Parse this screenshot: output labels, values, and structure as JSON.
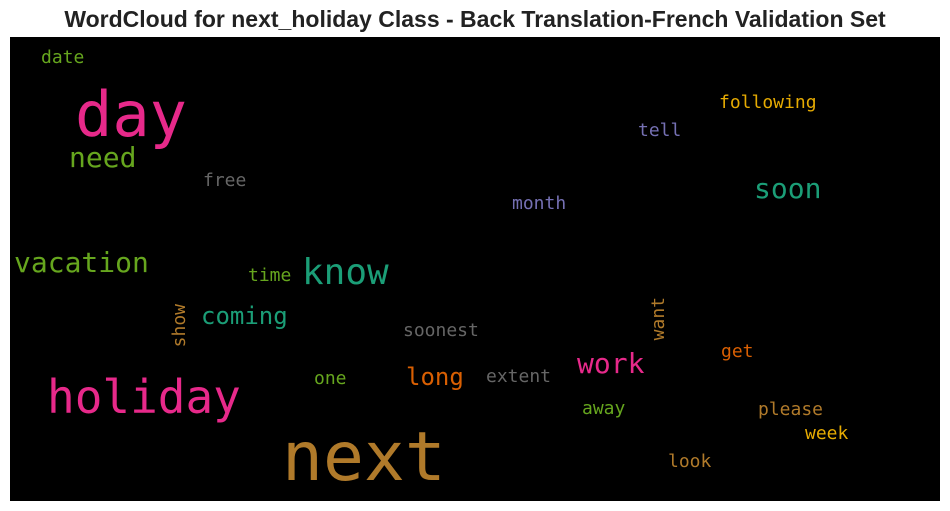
{
  "title": "WordCloud for next_holiday Class - Back Translation-French Validation Set",
  "words": [
    {
      "text": "next",
      "color": "#b07a2a"
    },
    {
      "text": "day",
      "color": "#e7298a"
    },
    {
      "text": "holiday",
      "color": "#e7298a"
    },
    {
      "text": "know",
      "color": "#1b9e77"
    },
    {
      "text": "vacation",
      "color": "#66a61e"
    },
    {
      "text": "need",
      "color": "#66a61e"
    },
    {
      "text": "soon",
      "color": "#1b9e77"
    },
    {
      "text": "work",
      "color": "#e7298a"
    },
    {
      "text": "coming",
      "color": "#1b9e77"
    },
    {
      "text": "long",
      "color": "#d95f02"
    },
    {
      "text": "following",
      "color": "#e6ab02"
    },
    {
      "text": "tell",
      "color": "#7570b3"
    },
    {
      "text": "month",
      "color": "#7570b3"
    },
    {
      "text": "free",
      "color": "#666666"
    },
    {
      "text": "date",
      "color": "#66a61e"
    },
    {
      "text": "time",
      "color": "#66a61e"
    },
    {
      "text": "show",
      "color": "#b07a2a"
    },
    {
      "text": "soonest",
      "color": "#666666"
    },
    {
      "text": "want",
      "color": "#b07a2a"
    },
    {
      "text": "get",
      "color": "#d95f02"
    },
    {
      "text": "one",
      "color": "#66a61e"
    },
    {
      "text": "extent",
      "color": "#666666"
    },
    {
      "text": "away",
      "color": "#66a61e"
    },
    {
      "text": "please",
      "color": "#b07a2a"
    },
    {
      "text": "week",
      "color": "#e6ab02"
    },
    {
      "text": "look",
      "color": "#b07a2a"
    }
  ]
}
